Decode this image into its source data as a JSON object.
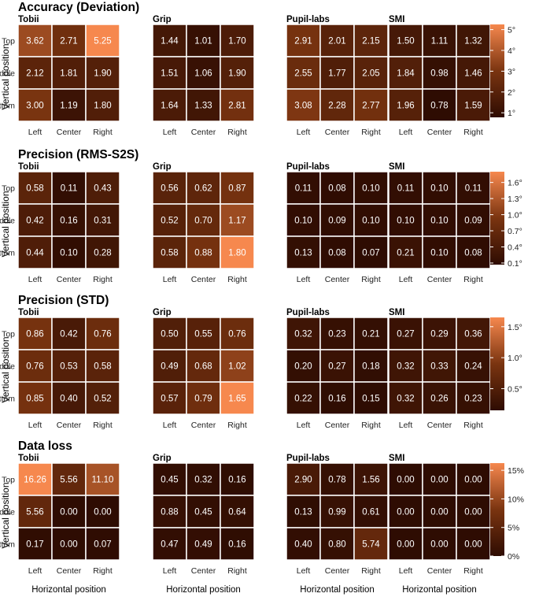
{
  "axes": {
    "y_title": "Vertical position",
    "x_title": "Horizontal position",
    "rows": [
      "Top",
      "Middle",
      "Bottom"
    ],
    "cols": [
      "Left",
      "Center",
      "Right"
    ],
    "trackers": [
      "Tobii",
      "Grip",
      "Pupil-labs",
      "SMI"
    ]
  },
  "colors": {
    "low": "#2e0c02",
    "mid": "#7a3410",
    "high": "#f6884e",
    "cell_border": "#ffffff",
    "text": "#ffffff"
  },
  "chart_data": [
    {
      "type": "heatmap",
      "title": "Accuracy (Deviation)",
      "legend_ticks": [
        "5°",
        "4°",
        "3°",
        "2°",
        "1°"
      ],
      "legend_tick_values": [
        5,
        4,
        3,
        2,
        1
      ],
      "range": [
        0.78,
        5.25
      ],
      "panels": [
        {
          "name": "Tobii",
          "values": [
            [
              "3.62",
              "2.71",
              "5.25"
            ],
            [
              "2.12",
              "1.81",
              "1.90"
            ],
            [
              "3.00",
              "1.19",
              "1.80"
            ]
          ]
        },
        {
          "name": "Grip",
          "values": [
            [
              "1.44",
              "1.01",
              "1.70"
            ],
            [
              "1.51",
              "1.06",
              "1.90"
            ],
            [
              "1.64",
              "1.33",
              "2.81"
            ]
          ]
        },
        {
          "name": "Pupil-labs",
          "values": [
            [
              "2.91",
              "2.01",
              "2.15"
            ],
            [
              "2.55",
              "1.77",
              "2.05"
            ],
            [
              "3.08",
              "2.28",
              "2.77"
            ]
          ]
        },
        {
          "name": "SMI",
          "values": [
            [
              "1.50",
              "1.11",
              "1.32"
            ],
            [
              "1.84",
              "0.98",
              "1.46"
            ],
            [
              "1.96",
              "0.78",
              "1.59"
            ]
          ]
        }
      ]
    },
    {
      "type": "heatmap",
      "title": "Precision (RMS-S2S)",
      "legend_ticks": [
        "1.6°",
        "1.3°",
        "1.0°",
        "0.7°",
        "0.4°",
        "0.1°"
      ],
      "legend_tick_values": [
        1.6,
        1.3,
        1.0,
        0.7,
        0.4,
        0.1
      ],
      "range": [
        0.07,
        1.8
      ],
      "panels": [
        {
          "name": "Tobii",
          "values": [
            [
              "0.58",
              "0.11",
              "0.43"
            ],
            [
              "0.42",
              "0.16",
              "0.31"
            ],
            [
              "0.44",
              "0.10",
              "0.28"
            ]
          ]
        },
        {
          "name": "Grip",
          "values": [
            [
              "0.56",
              "0.62",
              "0.87"
            ],
            [
              "0.52",
              "0.70",
              "1.17"
            ],
            [
              "0.58",
              "0.88",
              "1.80"
            ]
          ]
        },
        {
          "name": "Pupil-labs",
          "values": [
            [
              "0.11",
              "0.08",
              "0.10"
            ],
            [
              "0.10",
              "0.09",
              "0.10"
            ],
            [
              "0.13",
              "0.08",
              "0.07"
            ]
          ]
        },
        {
          "name": "SMI",
          "values": [
            [
              "0.11",
              "0.10",
              "0.11"
            ],
            [
              "0.10",
              "0.10",
              "0.09"
            ],
            [
              "0.21",
              "0.10",
              "0.08"
            ]
          ]
        }
      ]
    },
    {
      "type": "heatmap",
      "title": "Precision (STD)",
      "legend_ticks": [
        "1.5°",
        "1.0°",
        "0.5°"
      ],
      "legend_tick_values": [
        1.5,
        1.0,
        0.5
      ],
      "range": [
        0.15,
        1.65
      ],
      "panels": [
        {
          "name": "Tobii",
          "values": [
            [
              "0.86",
              "0.42",
              "0.76"
            ],
            [
              "0.76",
              "0.53",
              "0.58"
            ],
            [
              "0.85",
              "0.40",
              "0.52"
            ]
          ]
        },
        {
          "name": "Grip",
          "values": [
            [
              "0.50",
              "0.55",
              "0.76"
            ],
            [
              "0.49",
              "0.68",
              "1.02"
            ],
            [
              "0.57",
              "0.79",
              "1.65"
            ]
          ]
        },
        {
          "name": "Pupil-labs",
          "values": [
            [
              "0.32",
              "0.23",
              "0.21"
            ],
            [
              "0.20",
              "0.27",
              "0.18"
            ],
            [
              "0.22",
              "0.16",
              "0.15"
            ]
          ]
        },
        {
          "name": "SMI",
          "values": [
            [
              "0.27",
              "0.29",
              "0.36"
            ],
            [
              "0.32",
              "0.33",
              "0.24"
            ],
            [
              "0.32",
              "0.26",
              "0.23"
            ]
          ]
        }
      ]
    },
    {
      "type": "heatmap",
      "title": "Data loss",
      "legend_ticks": [
        "15%",
        "10%",
        "5%",
        "0%"
      ],
      "legend_tick_values": [
        15,
        10,
        5,
        0
      ],
      "range": [
        0,
        16.26
      ],
      "panels": [
        {
          "name": "Tobii",
          "values": [
            [
              "16.26",
              "5.56",
              "11.10"
            ],
            [
              "5.56",
              "0.00",
              "0.00"
            ],
            [
              "0.17",
              "0.00",
              "0.07"
            ]
          ]
        },
        {
          "name": "Grip",
          "values": [
            [
              "0.45",
              "0.32",
              "0.16"
            ],
            [
              "0.88",
              "0.45",
              "0.64"
            ],
            [
              "0.47",
              "0.49",
              "0.16"
            ]
          ]
        },
        {
          "name": "Pupil-labs",
          "values": [
            [
              "2.90",
              "0.78",
              "1.56"
            ],
            [
              "0.13",
              "0.99",
              "0.61"
            ],
            [
              "0.40",
              "0.80",
              "5.74"
            ]
          ]
        },
        {
          "name": "SMI",
          "values": [
            [
              "0.00",
              "0.00",
              "0.00"
            ],
            [
              "0.00",
              "0.00",
              "0.00"
            ],
            [
              "0.00",
              "0.00",
              "0.00"
            ]
          ]
        }
      ]
    }
  ]
}
